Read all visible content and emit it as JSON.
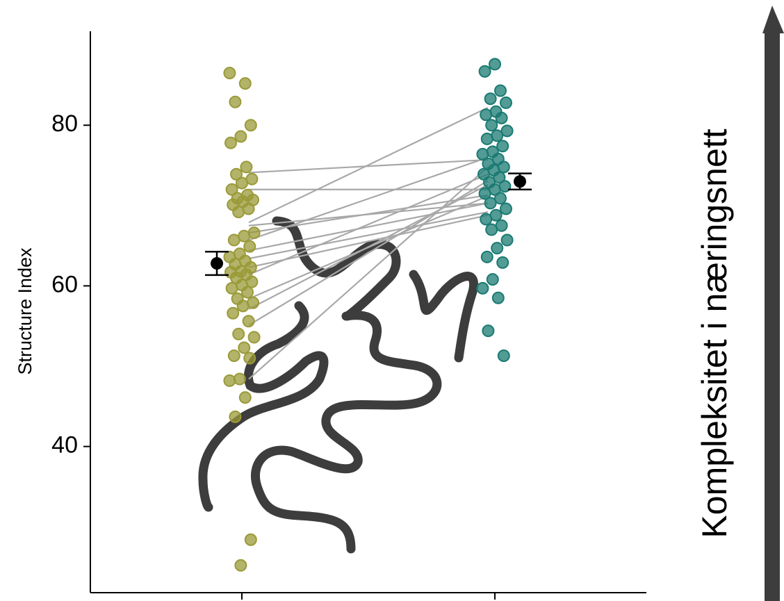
{
  "chart_data": {
    "type": "strip",
    "y_label": "Structure Index",
    "side_label": "Kompleksitet i næringsnett",
    "categories": [
      null,
      null
    ],
    "ylim": [
      21.8,
      91.7
    ],
    "yticks": [
      40,
      60,
      80
    ],
    "series": [
      {
        "color": "#9a9a38",
        "mean": 62.8,
        "error": 1.45,
        "values": [
          86.5,
          85.2,
          82.9,
          80.0,
          78.6,
          77.8,
          74.8,
          73.9,
          73.3,
          72.8,
          72.0,
          71.3,
          70.9,
          70.7,
          70.5,
          70.1,
          69.6,
          69.2,
          66.6,
          66.2,
          65.7,
          64.9,
          64.0,
          63.6,
          63.1,
          62.7,
          62.3,
          61.8,
          61.7,
          61.4,
          61.0,
          60.5,
          60.1,
          59.7,
          59.2,
          58.4,
          57.9,
          57.5,
          56.6,
          55.6,
          54.0,
          53.6,
          52.3,
          51.3,
          51.0,
          48.4,
          48.2,
          46.1,
          43.7,
          28.4,
          25.2
        ]
      },
      {
        "color": "#1a7a72",
        "mean": 73.0,
        "error": 1.0,
        "values": [
          87.6,
          86.7,
          84.3,
          83.3,
          82.8,
          81.7,
          81.3,
          80.9,
          80.0,
          79.3,
          78.7,
          78.3,
          77.4,
          76.7,
          76.4,
          75.8,
          75.2,
          74.8,
          74.4,
          73.9,
          73.5,
          72.9,
          72.4,
          72.0,
          71.5,
          70.9,
          70.3,
          69.6,
          68.8,
          68.3,
          67.5,
          67.0,
          65.7,
          64.7,
          63.6,
          62.9,
          60.8,
          59.7,
          58.5,
          54.4,
          51.3
        ]
      }
    ],
    "pairs": [
      [
        74.1,
        75.7
      ],
      [
        72.0,
        72.0
      ],
      [
        67.9,
        82.2
      ],
      [
        65.7,
        76.0
      ],
      [
        66.6,
        71.3
      ],
      [
        67.5,
        70.3
      ],
      [
        64.4,
        70.3
      ],
      [
        63.4,
        69.2
      ],
      [
        62.3,
        68.8
      ],
      [
        61.4,
        73.9
      ],
      [
        58.4,
        71.2
      ],
      [
        57.1,
        72.6
      ],
      [
        55.1,
        73.1
      ],
      [
        48.4,
        74.8
      ]
    ]
  }
}
